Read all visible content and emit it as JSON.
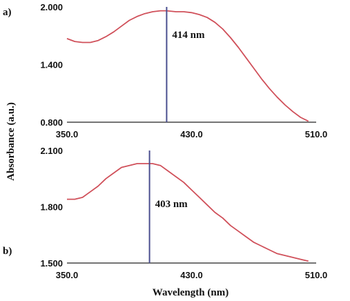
{
  "figure": {
    "xlabel": "Wavelength (nm)",
    "ylabel": "Absorbance (a.u.)"
  },
  "colors": {
    "curve": "#d0505a",
    "marker": "#4a4f8f",
    "axis": "#222222"
  },
  "chart_data": [
    {
      "type": "line",
      "panel_label": "a)",
      "xlim": [
        350,
        510
      ],
      "ylim": [
        0.8,
        2.0
      ],
      "xticks": [
        "350.0",
        "430.0",
        "510.0"
      ],
      "yticks": [
        "2.000",
        "1.400",
        "0.800"
      ],
      "marker_x": 414,
      "annotation": "414 nm",
      "series": [
        {
          "x": [
            350,
            355,
            360,
            365,
            370,
            375,
            380,
            385,
            390,
            395,
            400,
            405,
            410,
            414,
            420,
            425,
            430,
            435,
            440,
            445,
            450,
            455,
            460,
            465,
            470,
            475,
            480,
            485,
            490,
            495,
            500,
            505
          ],
          "values": [
            1.67,
            1.64,
            1.63,
            1.63,
            1.65,
            1.69,
            1.74,
            1.8,
            1.86,
            1.9,
            1.93,
            1.95,
            1.96,
            1.96,
            1.95,
            1.95,
            1.94,
            1.92,
            1.89,
            1.84,
            1.77,
            1.68,
            1.58,
            1.47,
            1.36,
            1.25,
            1.15,
            1.06,
            0.98,
            0.91,
            0.85,
            0.81
          ]
        }
      ]
    },
    {
      "type": "line",
      "panel_label": "b)",
      "xlim": [
        350,
        510
      ],
      "ylim": [
        1.5,
        2.1
      ],
      "xticks": [
        "350.0",
        "430.0",
        "510.0"
      ],
      "yticks": [
        "2.100",
        "1.800",
        "1.500"
      ],
      "marker_x": 403,
      "annotation": "403 nm",
      "series": [
        {
          "x": [
            350,
            355,
            360,
            365,
            370,
            375,
            380,
            385,
            390,
            395,
            400,
            403,
            405,
            410,
            415,
            420,
            425,
            430,
            435,
            440,
            445,
            450,
            455,
            460,
            465,
            470,
            475,
            480,
            485,
            490,
            495,
            500,
            505
          ],
          "values": [
            1.84,
            1.84,
            1.85,
            1.88,
            1.91,
            1.95,
            1.98,
            2.01,
            2.02,
            2.03,
            2.03,
            2.03,
            2.03,
            2.02,
            1.99,
            1.96,
            1.93,
            1.89,
            1.85,
            1.81,
            1.77,
            1.74,
            1.7,
            1.67,
            1.64,
            1.61,
            1.59,
            1.57,
            1.55,
            1.54,
            1.53,
            1.52,
            1.51
          ]
        }
      ]
    }
  ]
}
